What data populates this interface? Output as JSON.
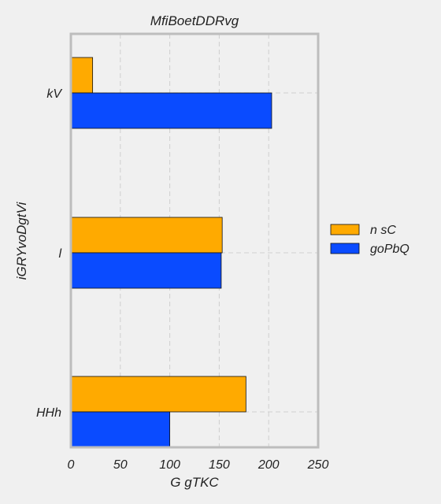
{
  "chart_data": {
    "type": "bar",
    "orientation": "horizontal",
    "title": "MfiBoetDDRvg",
    "xlabel": "G gTKC",
    "ylabel": "iGRYvoDgtVi",
    "categories": [
      "HHh",
      "l",
      "kV"
    ],
    "series": [
      {
        "name": "n sC",
        "color": "#ffaa00",
        "values": [
          177,
          153,
          22
        ]
      },
      {
        "name": "goPbQ",
        "color": "#0a4bff",
        "values": [
          100,
          152,
          203
        ]
      }
    ],
    "xlim": [
      0,
      250
    ],
    "xticks": [
      0,
      50,
      100,
      150,
      200,
      250
    ],
    "grid": true,
    "legend_position": "right"
  }
}
